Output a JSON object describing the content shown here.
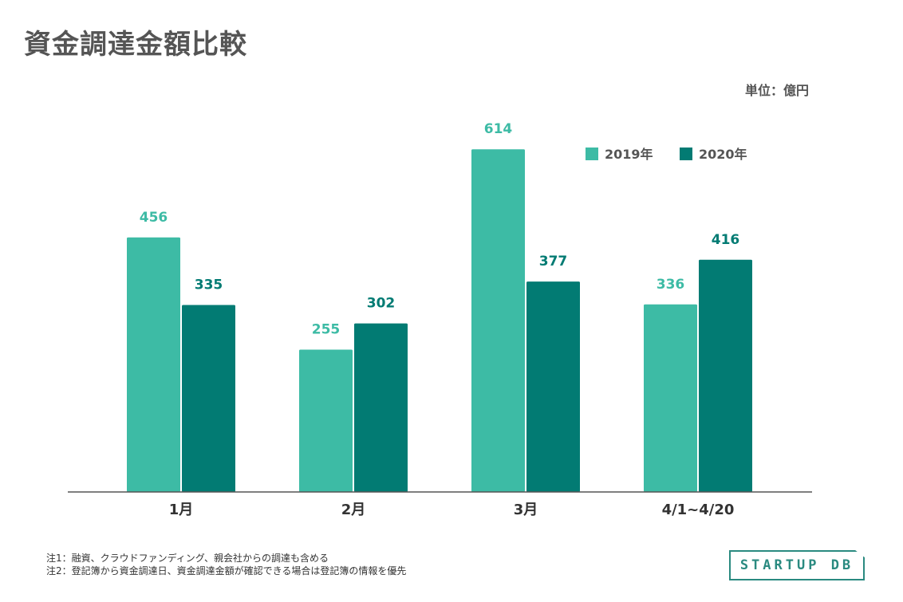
{
  "title": "資金調達金額比較",
  "unit_label": "単位：億円",
  "notes": [
    "注1：融資、クラウドファンディング、親会社からの調達も含める",
    "注2：登記簿から資金調達日、資金調達金額が確認できる場合は登記簿の情報を優先"
  ],
  "logo_text": "STARTUP DB",
  "chart_data": {
    "type": "bar",
    "categories": [
      "1月",
      "2月",
      "3月",
      "4/1~4/20"
    ],
    "series": [
      {
        "name": "2019年",
        "values": [
          456,
          255,
          614,
          336
        ],
        "color": "#3dbba5"
      },
      {
        "name": "2020年",
        "values": [
          335,
          302,
          377,
          416
        ],
        "color": "#027b73"
      }
    ],
    "ylim": [
      0,
      800
    ],
    "grid": false,
    "data_labels": true,
    "legend_placement": "top-right"
  }
}
